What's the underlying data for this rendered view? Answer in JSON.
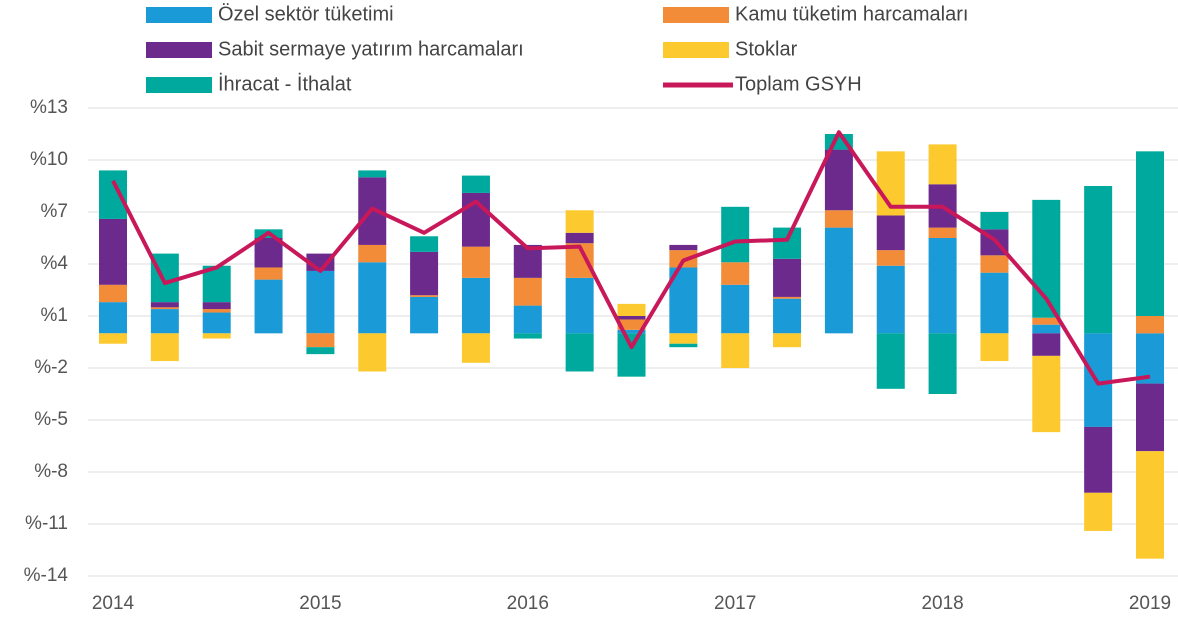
{
  "chart_data": {
    "type": "stacked_bar_line",
    "categories": [
      "2014",
      null,
      null,
      null,
      "2015",
      null,
      null,
      null,
      "2016",
      null,
      null,
      null,
      "2017",
      null,
      null,
      null,
      "2018",
      null,
      null,
      null,
      "2019"
    ],
    "ylim": [
      -14,
      13
    ],
    "yticks": [
      {
        "value": -14,
        "label": "%-14"
      },
      {
        "value": -11,
        "label": "%-11"
      },
      {
        "value": -8,
        "label": "%-8"
      },
      {
        "value": -5,
        "label": "%-5"
      },
      {
        "value": -2,
        "label": "%-2"
      },
      {
        "value": 1,
        "label": "%1"
      },
      {
        "value": 4,
        "label": "%4"
      },
      {
        "value": 7,
        "label": "%7"
      },
      {
        "value": 10,
        "label": "%10"
      },
      {
        "value": 13,
        "label": "%13"
      }
    ],
    "grid": true,
    "series": [
      {
        "name": "Özel sektör tüketimi",
        "color": "#1a9ad6",
        "values": [
          1.8,
          1.4,
          1.2,
          3.1,
          3.6,
          4.1,
          2.1,
          3.2,
          1.6,
          3.2,
          0.2,
          3.8,
          2.8,
          2.0,
          6.1,
          3.9,
          5.5,
          3.5,
          0.5,
          -5.4,
          -2.9
        ]
      },
      {
        "name": "Kamu tüketim harcamaları",
        "color": "#f28c38",
        "values": [
          1.0,
          0.1,
          0.2,
          0.7,
          -0.8,
          1.0,
          0.1,
          1.8,
          1.6,
          2.0,
          0.6,
          1.0,
          1.3,
          0.1,
          1.0,
          0.9,
          0.6,
          1.0,
          0.4,
          0,
          1.0
        ]
      },
      {
        "name": "Sabit sermaye yatırım harcamaları",
        "color": "#6c2a8c",
        "values": [
          3.8,
          0.3,
          0.4,
          1.7,
          1.0,
          3.9,
          2.5,
          3.1,
          1.9,
          0.6,
          0.2,
          0.3,
          0,
          2.2,
          3.5,
          2.0,
          2.5,
          1.5,
          -1.3,
          -3.8,
          -3.9
        ]
      },
      {
        "name": "Stoklar",
        "color": "#fcc92e",
        "values": [
          -0.6,
          -1.6,
          -0.3,
          0,
          0,
          -2.2,
          0,
          -1.7,
          0,
          1.3,
          0.7,
          -0.6,
          -2.0,
          -0.8,
          0,
          3.7,
          2.3,
          -1.6,
          -4.4,
          -2.2,
          -6.2
        ]
      },
      {
        "name": "İhracat - İthalat",
        "color": "#00a99d",
        "values": [
          2.8,
          2.8,
          2.1,
          0.5,
          -0.4,
          0.4,
          0.9,
          1.0,
          -0.3,
          -2.2,
          -2.5,
          -0.2,
          3.2,
          1.8,
          0.9,
          -3.2,
          -3.5,
          1.0,
          6.8,
          8.5,
          9.5
        ]
      },
      {
        "name": "Toplam GSYH",
        "color": "#c8185a",
        "kind": "line",
        "values": [
          8.8,
          2.9,
          3.8,
          5.8,
          3.6,
          7.2,
          5.8,
          7.6,
          4.9,
          5.0,
          -0.8,
          4.2,
          5.3,
          5.4,
          11.6,
          7.3,
          7.3,
          5.4,
          2.0,
          -2.9,
          -2.5
        ]
      }
    ]
  }
}
